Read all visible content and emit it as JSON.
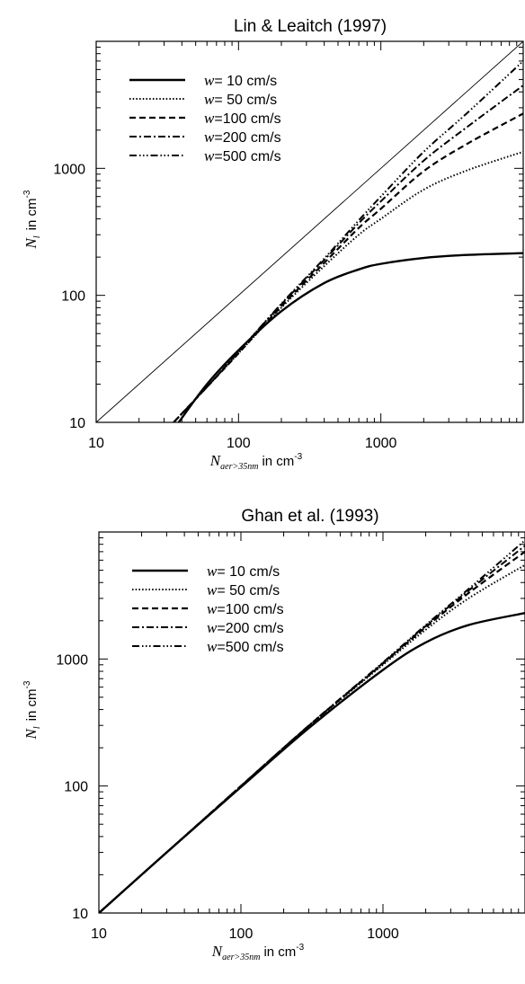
{
  "chart_data": [
    {
      "type": "line",
      "title": "Lin & Leaitch (1997)",
      "xlabel": {
        "symbol": "N",
        "subscript": "aer>35nm",
        "unit": "in cm",
        "exponent": "-3"
      },
      "ylabel": {
        "symbol": "N",
        "subscript": "l",
        "unit": "in cm",
        "exponent": "-3"
      },
      "xscale": "log",
      "yscale": "log",
      "xlim": [
        10,
        10000
      ],
      "ylim": [
        10,
        10000
      ],
      "xticklabels": [
        "10",
        "100",
        "1000"
      ],
      "yticklabels": [
        "10",
        "100",
        "1000"
      ],
      "legend": {
        "placement": "top-left",
        "entries": [
          {
            "var": "w",
            "text": "= 10 cm/s"
          },
          {
            "var": "w",
            "text": "= 50 cm/s"
          },
          {
            "var": "w",
            "text": "=100 cm/s"
          },
          {
            "var": "w",
            "text": "=200 cm/s"
          },
          {
            "var": "w",
            "text": "=500 cm/s"
          }
        ]
      },
      "reference_line": {
        "x": [
          10,
          10000
        ],
        "y": [
          10,
          10000
        ]
      },
      "series": [
        {
          "w": 10,
          "style": "solid",
          "x": [
            38,
            60,
            100,
            200,
            400,
            700,
            1000,
            2000,
            4000,
            10000
          ],
          "y": [
            10,
            20,
            37,
            75,
            125,
            160,
            177,
            197,
            208,
            215
          ]
        },
        {
          "w": 50,
          "style": "dotted",
          "x": [
            35,
            60,
            100,
            200,
            400,
            700,
            1000,
            2000,
            4000,
            10000
          ],
          "y": [
            10,
            19,
            35,
            80,
            170,
            300,
            400,
            680,
            960,
            1350
          ]
        },
        {
          "w": 100,
          "style": "dashed",
          "x": [
            35,
            60,
            100,
            200,
            400,
            700,
            1000,
            2000,
            4000,
            10000
          ],
          "y": [
            10,
            19,
            35,
            82,
            180,
            340,
            480,
            950,
            1550,
            2700
          ]
        },
        {
          "w": 200,
          "style": "dashdot",
          "x": [
            35,
            60,
            100,
            200,
            400,
            700,
            1000,
            2000,
            4000,
            10000
          ],
          "y": [
            10,
            19,
            36,
            85,
            190,
            370,
            550,
            1150,
            2100,
            4500
          ]
        },
        {
          "w": 500,
          "style": "dashdotdotdot",
          "x": [
            35,
            60,
            100,
            200,
            400,
            700,
            1000,
            2000,
            4000,
            10000
          ],
          "y": [
            10,
            19,
            36,
            86,
            195,
            390,
            600,
            1350,
            2700,
            7000
          ]
        }
      ]
    },
    {
      "type": "line",
      "title": "Ghan et al. (1993)",
      "xlabel": {
        "symbol": "N",
        "subscript": "aer>35nm",
        "unit": "in cm",
        "exponent": "-3"
      },
      "ylabel": {
        "symbol": "N",
        "subscript": "l",
        "unit": "in cm",
        "exponent": "-3"
      },
      "xscale": "log",
      "yscale": "log",
      "xlim": [
        10,
        10000
      ],
      "ylim": [
        10,
        10000
      ],
      "xticklabels": [
        "10",
        "100",
        "1000"
      ],
      "yticklabels": [
        "10",
        "100",
        "1000"
      ],
      "legend": {
        "placement": "top-left",
        "entries": [
          {
            "var": "w",
            "text": "= 10 cm/s"
          },
          {
            "var": "w",
            "text": "= 50 cm/s"
          },
          {
            "var": "w",
            "text": "=100 cm/s"
          },
          {
            "var": "w",
            "text": "=200 cm/s"
          },
          {
            "var": "w",
            "text": "=500 cm/s"
          }
        ]
      },
      "series": [
        {
          "w": 10,
          "style": "solid",
          "x": [
            10,
            30,
            100,
            300,
            1000,
            2000,
            4000,
            10000
          ],
          "y": [
            10,
            30,
            98,
            285,
            820,
            1350,
            1850,
            2300
          ]
        },
        {
          "w": 50,
          "style": "dotted",
          "x": [
            10,
            30,
            100,
            300,
            1000,
            2000,
            4000,
            10000
          ],
          "y": [
            10,
            30,
            100,
            295,
            900,
            1700,
            3000,
            5500
          ]
        },
        {
          "w": 100,
          "style": "dashed",
          "x": [
            10,
            30,
            100,
            300,
            1000,
            2000,
            4000,
            10000
          ],
          "y": [
            10,
            30,
            100,
            297,
            920,
            1780,
            3300,
            7000
          ]
        },
        {
          "w": 200,
          "style": "dashdot",
          "x": [
            10,
            30,
            100,
            300,
            1000,
            2000,
            4000,
            10000
          ],
          "y": [
            10,
            30,
            100,
            298,
            930,
            1820,
            3450,
            7800
          ]
        },
        {
          "w": 500,
          "style": "dashdotdotdot",
          "x": [
            10,
            30,
            100,
            300,
            1000,
            2000,
            4000,
            10000
          ],
          "y": [
            10,
            30,
            100,
            299,
            940,
            1850,
            3550,
            8600
          ]
        }
      ]
    }
  ]
}
